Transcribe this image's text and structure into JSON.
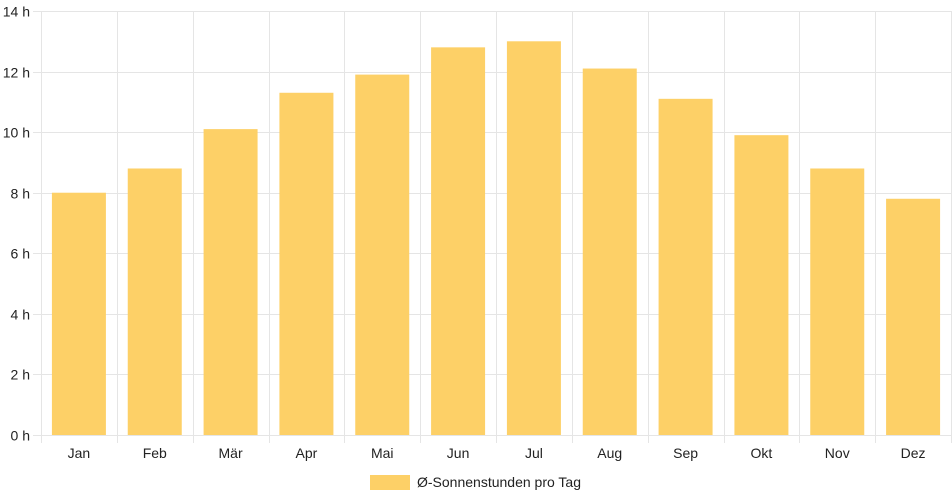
{
  "chart_data": {
    "type": "bar",
    "categories": [
      "Jan",
      "Feb",
      "Mär",
      "Apr",
      "Mai",
      "Jun",
      "Jul",
      "Aug",
      "Sep",
      "Okt",
      "Nov",
      "Dez"
    ],
    "series": [
      {
        "name": "Ø-Sonnenstunden pro Tag",
        "values": [
          8.0,
          8.8,
          10.1,
          11.3,
          11.9,
          12.8,
          13.0,
          12.1,
          11.1,
          9.9,
          8.8,
          7.8
        ],
        "color": "#fdd067"
      }
    ],
    "ylim": [
      0,
      14
    ],
    "yticks": [
      {
        "value": 0,
        "label": "0 h"
      },
      {
        "value": 2,
        "label": "2 h"
      },
      {
        "value": 4,
        "label": "4 h"
      },
      {
        "value": 6,
        "label": "6 h"
      },
      {
        "value": 8,
        "label": "8 h"
      },
      {
        "value": 10,
        "label": "10 h"
      },
      {
        "value": 12,
        "label": "12 h"
      },
      {
        "value": 14,
        "label": "14 h"
      }
    ],
    "grid": true,
    "legend_position": "bottom-center",
    "colors": {
      "grid": "#e5e5e5",
      "axis": "#dddddd",
      "text": "#222222"
    }
  }
}
